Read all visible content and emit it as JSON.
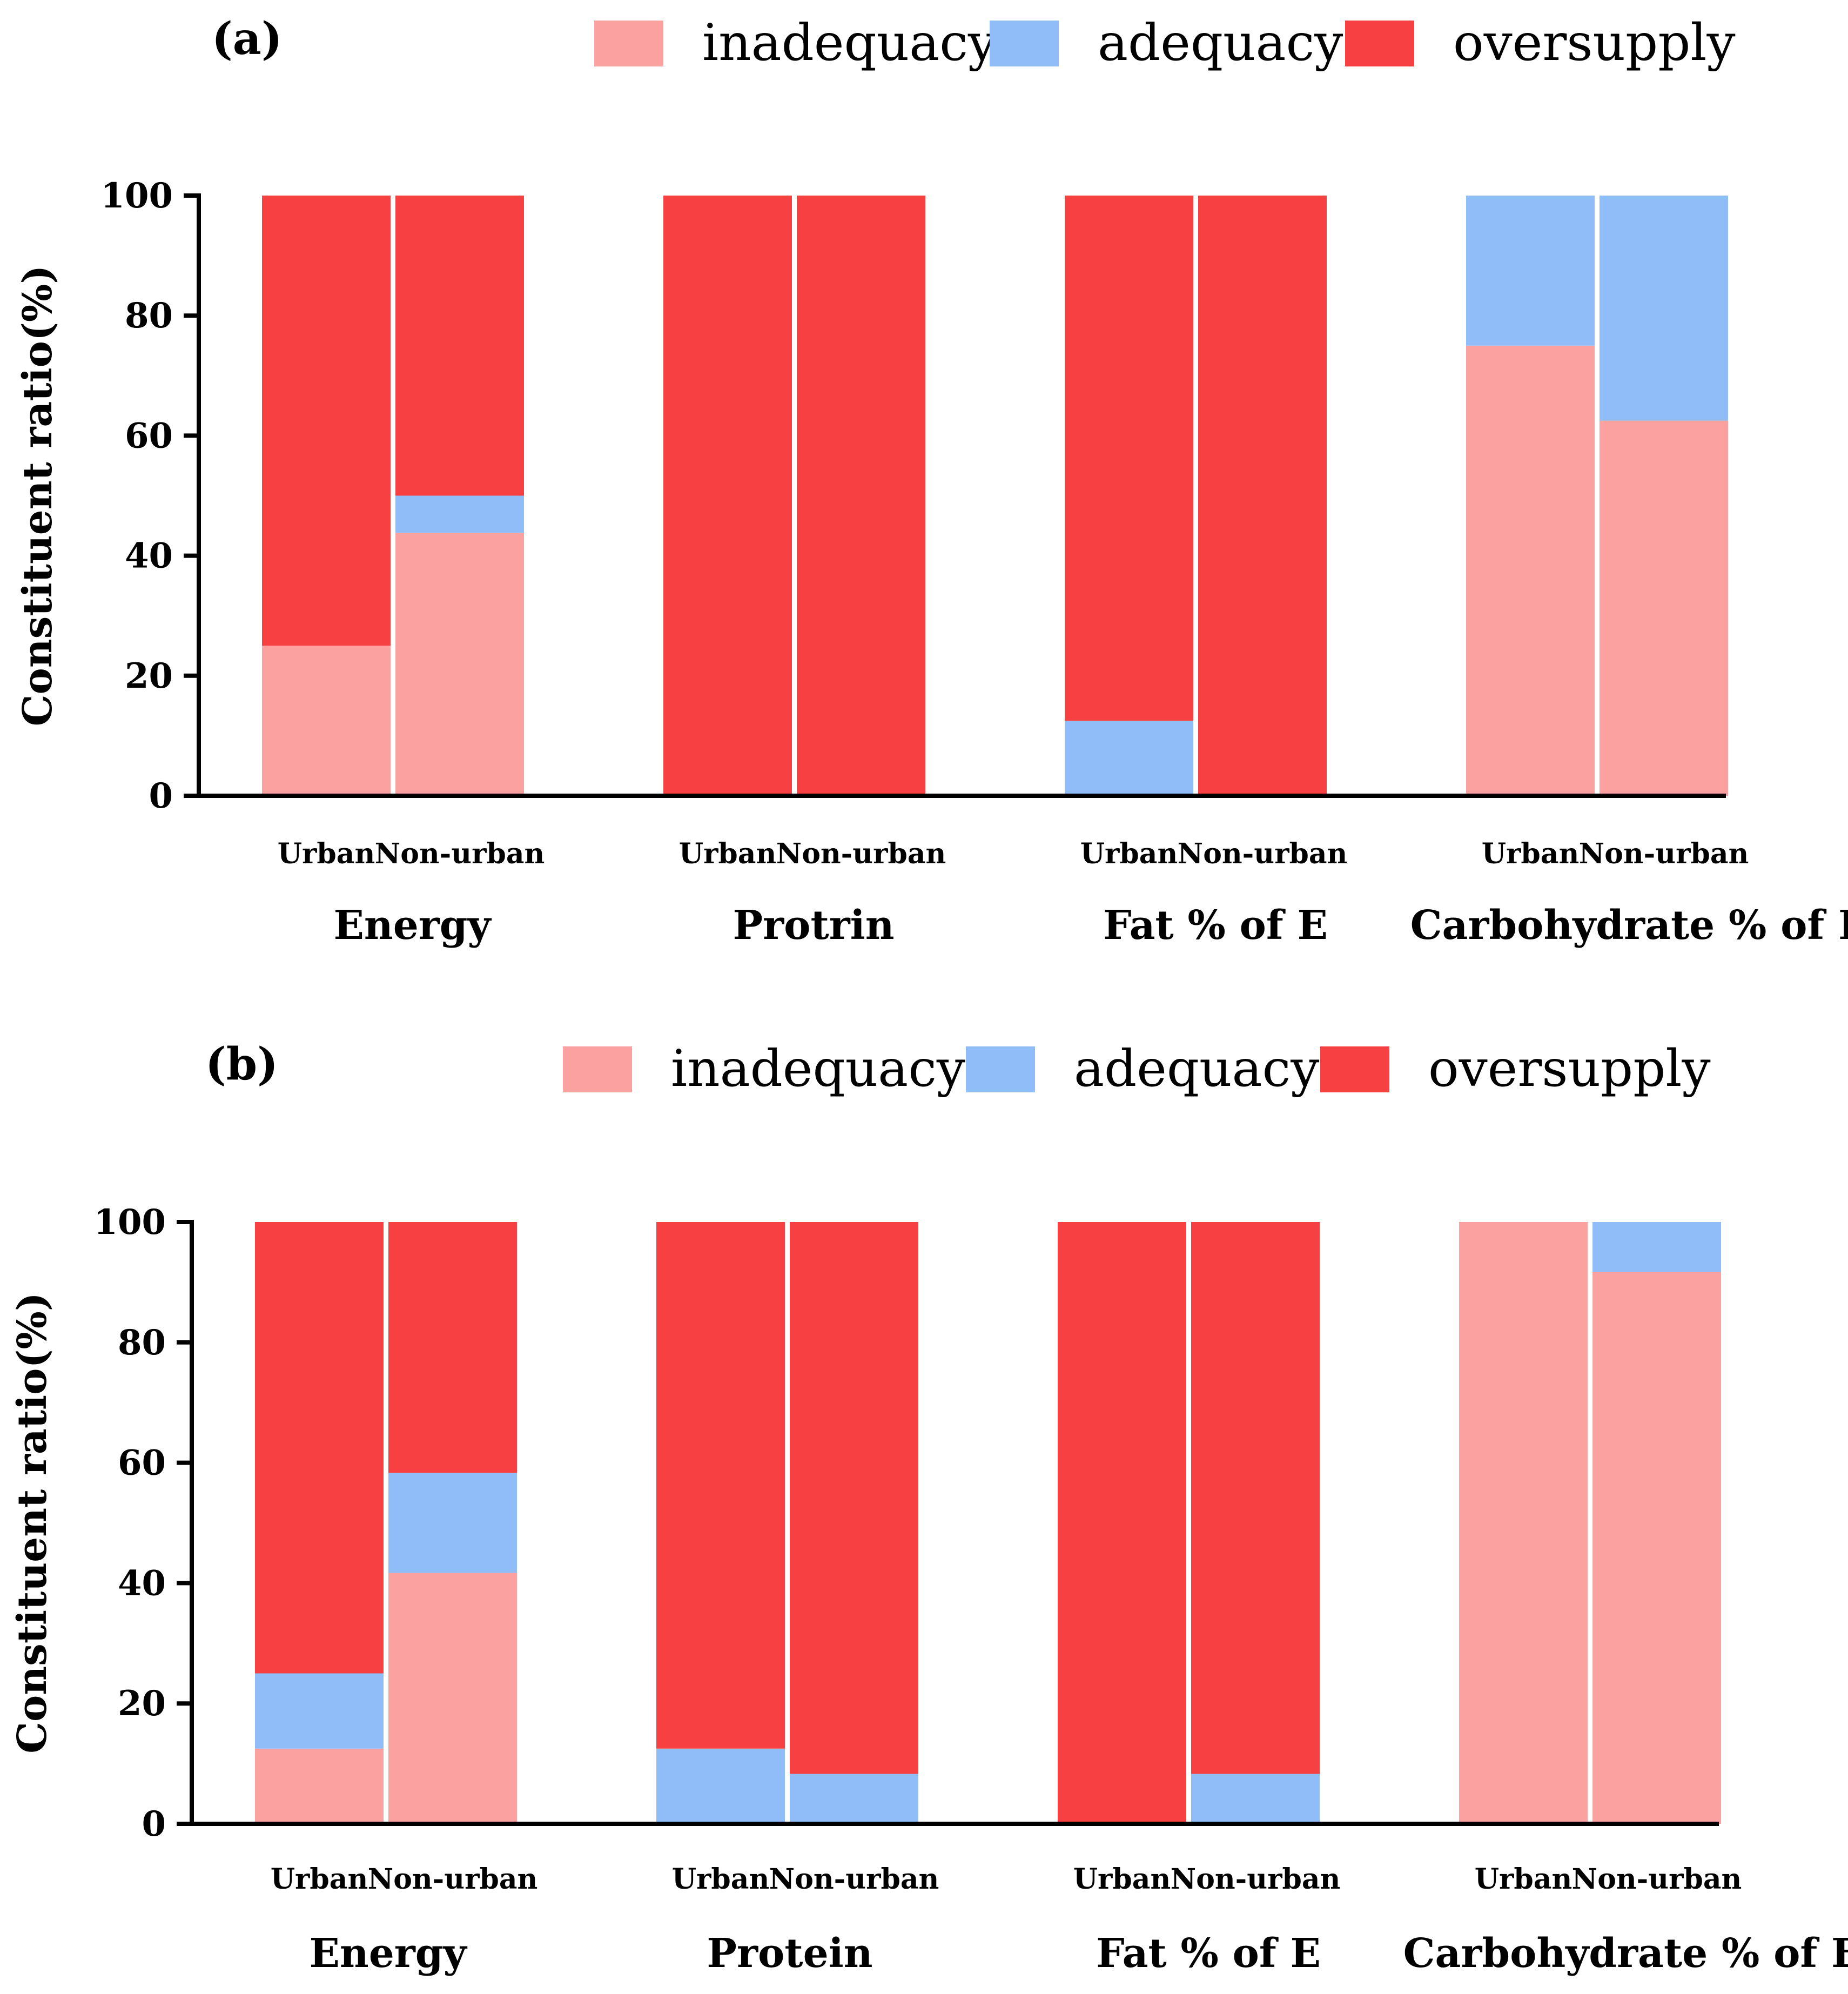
{
  "colors": {
    "inadequacy": "#fba19f",
    "adequacy": "#90bcf8",
    "oversupply": "#f74042"
  },
  "chart_data": [
    {
      "type": "bar",
      "stacked": true,
      "panel_label": "(a)",
      "ylabel": "Constituent ratio(%)",
      "ylim": [
        0,
        100
      ],
      "yticks": [
        "0",
        "20",
        "40",
        "60",
        "80",
        "100"
      ],
      "legend": [
        "inadequacy",
        "adequacy",
        "oversupply"
      ],
      "legend_position": "top",
      "groups": [
        {
          "label": "Energy",
          "bars": [
            {
              "label": "Urban",
              "inadequacy": 25,
              "adequacy": 0,
              "oversupply": 75
            },
            {
              "label": "Non-urban",
              "inadequacy": 43.8,
              "adequacy": 6.2,
              "oversupply": 50
            }
          ]
        },
        {
          "label": "Protrin",
          "bars": [
            {
              "label": "Urban",
              "inadequacy": 0,
              "adequacy": 0,
              "oversupply": 100
            },
            {
              "label": "Non-urban",
              "inadequacy": 0,
              "adequacy": 0,
              "oversupply": 100
            }
          ]
        },
        {
          "label": "Fat % of E",
          "bars": [
            {
              "label": "Urban",
              "inadequacy": 0,
              "adequacy": 12.5,
              "oversupply": 87.5
            },
            {
              "label": "Non-urban",
              "inadequacy": 0,
              "adequacy": 0,
              "oversupply": 100
            }
          ]
        },
        {
          "label": "Carbohydrate % of E",
          "bars": [
            {
              "label": "Urban",
              "inadequacy": 75,
              "adequacy": 25,
              "oversupply": 0
            },
            {
              "label": "Non-urban",
              "inadequacy": 62.5,
              "adequacy": 37.5,
              "oversupply": 0
            }
          ]
        }
      ]
    },
    {
      "type": "bar",
      "stacked": true,
      "panel_label": "(b)",
      "ylabel": "Constituent ratio(%)",
      "ylim": [
        0,
        100
      ],
      "yticks": [
        "0",
        "20",
        "40",
        "60",
        "80",
        "100"
      ],
      "legend": [
        "inadequacy",
        "adequacy",
        "oversupply"
      ],
      "legend_position": "top",
      "groups": [
        {
          "label": "Energy",
          "bars": [
            {
              "label": "Urban",
              "inadequacy": 12.5,
              "adequacy": 12.5,
              "oversupply": 75
            },
            {
              "label": "Non-urban",
              "inadequacy": 41.7,
              "adequacy": 16.6,
              "oversupply": 41.7
            }
          ]
        },
        {
          "label": "Protein",
          "bars": [
            {
              "label": "Urban",
              "inadequacy": 0,
              "adequacy": 12.5,
              "oversupply": 87.5
            },
            {
              "label": "Non-urban",
              "inadequacy": 0,
              "adequacy": 8.3,
              "oversupply": 91.7
            }
          ]
        },
        {
          "label": "Fat % of E",
          "bars": [
            {
              "label": "Urban",
              "inadequacy": 0,
              "adequacy": 0,
              "oversupply": 100
            },
            {
              "label": "Non-urban",
              "inadequacy": 0,
              "adequacy": 8.3,
              "oversupply": 91.7
            }
          ]
        },
        {
          "label": "Carbohydrate % of E",
          "bars": [
            {
              "label": "Urban",
              "inadequacy": 100,
              "adequacy": 0,
              "oversupply": 0
            },
            {
              "label": "Non-urban",
              "inadequacy": 91.7,
              "adequacy": 8.3,
              "oversupply": 0
            }
          ]
        }
      ]
    }
  ]
}
